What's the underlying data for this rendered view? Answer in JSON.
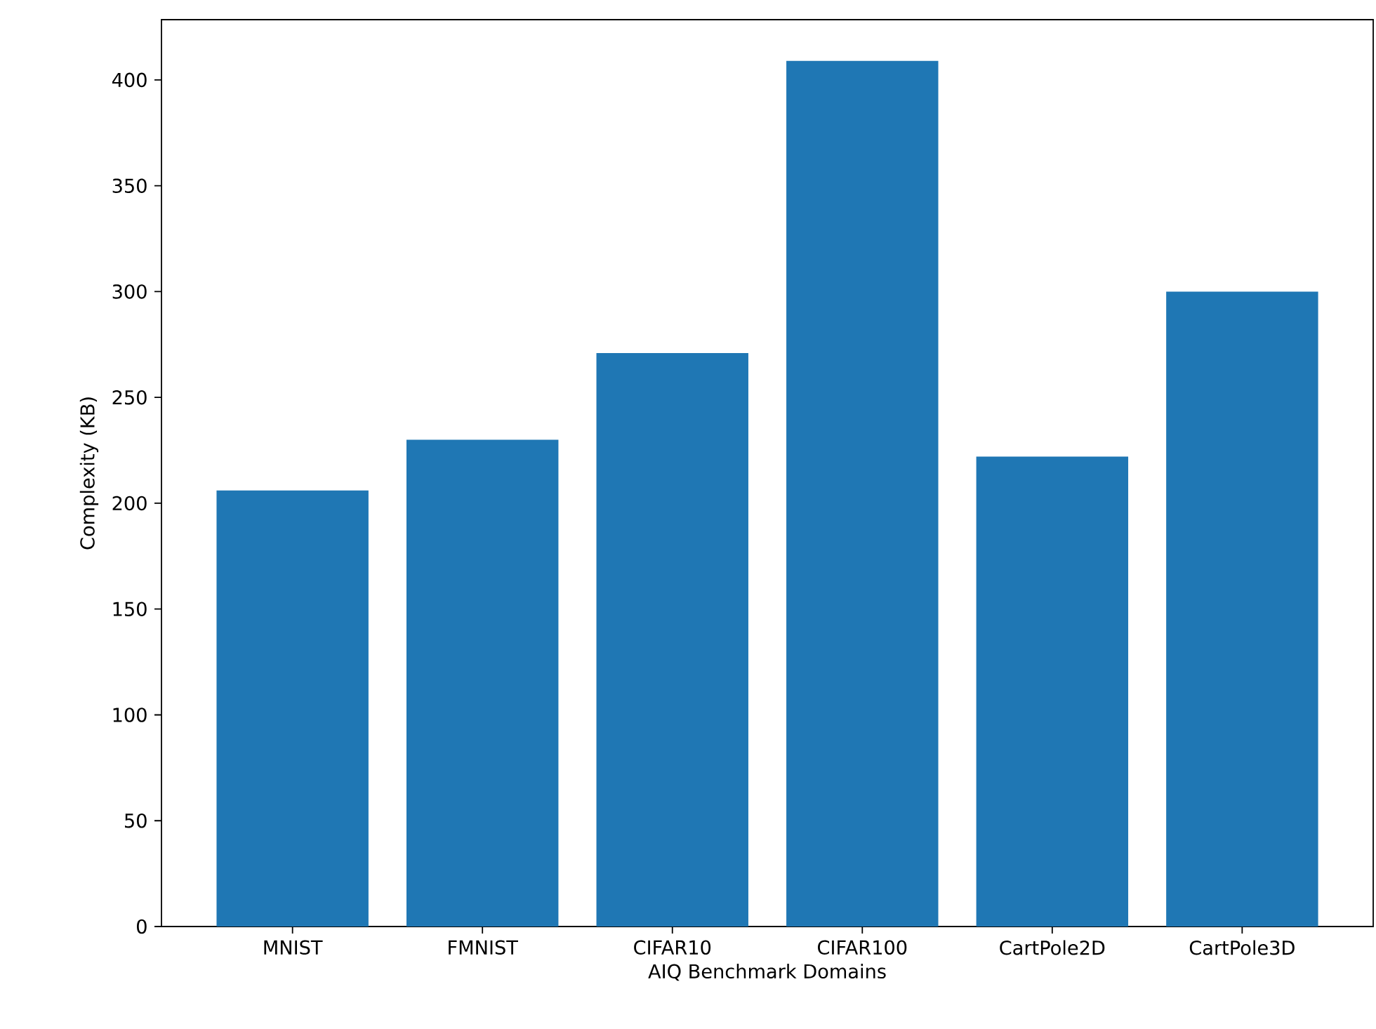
{
  "chart_data": {
    "type": "bar",
    "xlabel": "AIQ Benchmark Domains",
    "ylabel": "Complexity (KB)",
    "categories": [
      "MNIST",
      "FMNIST",
      "CIFAR10",
      "CIFAR100",
      "CartPole2D",
      "CartPole3D"
    ],
    "values": [
      206,
      230,
      271,
      409,
      222,
      300
    ],
    "color": "#1f77b4",
    "ylim": [
      0,
      428.5
    ],
    "yticks": [
      0,
      50,
      100,
      150,
      200,
      250,
      300,
      350,
      400
    ]
  }
}
